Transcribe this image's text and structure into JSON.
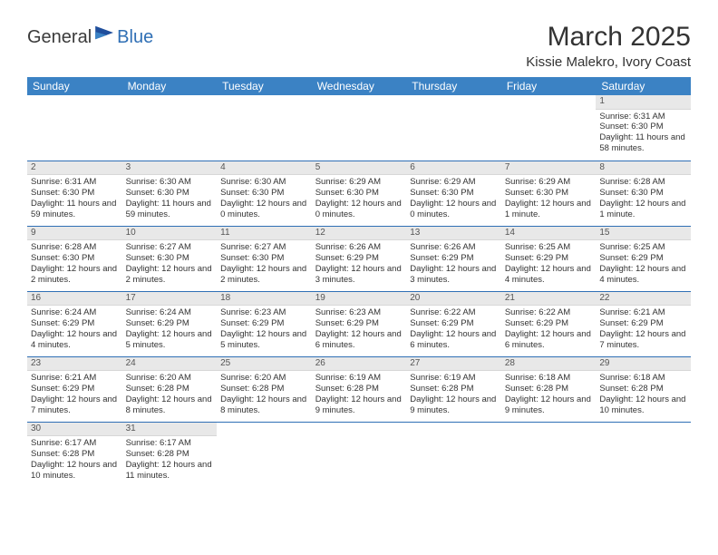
{
  "logo": {
    "text1": "General",
    "text2": "Blue"
  },
  "title": {
    "month": "March 2025",
    "location": "Kissie Malekro, Ivory Coast"
  },
  "dayHeaders": [
    "Sunday",
    "Monday",
    "Tuesday",
    "Wednesday",
    "Thursday",
    "Friday",
    "Saturday"
  ],
  "colors": {
    "header_bg": "#3b82c4",
    "header_fg": "#ffffff",
    "row_sep": "#2f6fb5",
    "daynum_bg": "#e8e8e8",
    "text": "#333333"
  },
  "leadingBlanks": 6,
  "days": [
    {
      "n": 1,
      "sunrise": "6:31 AM",
      "sunset": "6:30 PM",
      "daylight": "11 hours and 58 minutes."
    },
    {
      "n": 2,
      "sunrise": "6:31 AM",
      "sunset": "6:30 PM",
      "daylight": "11 hours and 59 minutes."
    },
    {
      "n": 3,
      "sunrise": "6:30 AM",
      "sunset": "6:30 PM",
      "daylight": "11 hours and 59 minutes."
    },
    {
      "n": 4,
      "sunrise": "6:30 AM",
      "sunset": "6:30 PM",
      "daylight": "12 hours and 0 minutes."
    },
    {
      "n": 5,
      "sunrise": "6:29 AM",
      "sunset": "6:30 PM",
      "daylight": "12 hours and 0 minutes."
    },
    {
      "n": 6,
      "sunrise": "6:29 AM",
      "sunset": "6:30 PM",
      "daylight": "12 hours and 0 minutes."
    },
    {
      "n": 7,
      "sunrise": "6:29 AM",
      "sunset": "6:30 PM",
      "daylight": "12 hours and 1 minute."
    },
    {
      "n": 8,
      "sunrise": "6:28 AM",
      "sunset": "6:30 PM",
      "daylight": "12 hours and 1 minute."
    },
    {
      "n": 9,
      "sunrise": "6:28 AM",
      "sunset": "6:30 PM",
      "daylight": "12 hours and 2 minutes."
    },
    {
      "n": 10,
      "sunrise": "6:27 AM",
      "sunset": "6:30 PM",
      "daylight": "12 hours and 2 minutes."
    },
    {
      "n": 11,
      "sunrise": "6:27 AM",
      "sunset": "6:30 PM",
      "daylight": "12 hours and 2 minutes."
    },
    {
      "n": 12,
      "sunrise": "6:26 AM",
      "sunset": "6:29 PM",
      "daylight": "12 hours and 3 minutes."
    },
    {
      "n": 13,
      "sunrise": "6:26 AM",
      "sunset": "6:29 PM",
      "daylight": "12 hours and 3 minutes."
    },
    {
      "n": 14,
      "sunrise": "6:25 AM",
      "sunset": "6:29 PM",
      "daylight": "12 hours and 4 minutes."
    },
    {
      "n": 15,
      "sunrise": "6:25 AM",
      "sunset": "6:29 PM",
      "daylight": "12 hours and 4 minutes."
    },
    {
      "n": 16,
      "sunrise": "6:24 AM",
      "sunset": "6:29 PM",
      "daylight": "12 hours and 4 minutes."
    },
    {
      "n": 17,
      "sunrise": "6:24 AM",
      "sunset": "6:29 PM",
      "daylight": "12 hours and 5 minutes."
    },
    {
      "n": 18,
      "sunrise": "6:23 AM",
      "sunset": "6:29 PM",
      "daylight": "12 hours and 5 minutes."
    },
    {
      "n": 19,
      "sunrise": "6:23 AM",
      "sunset": "6:29 PM",
      "daylight": "12 hours and 6 minutes."
    },
    {
      "n": 20,
      "sunrise": "6:22 AM",
      "sunset": "6:29 PM",
      "daylight": "12 hours and 6 minutes."
    },
    {
      "n": 21,
      "sunrise": "6:22 AM",
      "sunset": "6:29 PM",
      "daylight": "12 hours and 6 minutes."
    },
    {
      "n": 22,
      "sunrise": "6:21 AM",
      "sunset": "6:29 PM",
      "daylight": "12 hours and 7 minutes."
    },
    {
      "n": 23,
      "sunrise": "6:21 AM",
      "sunset": "6:29 PM",
      "daylight": "12 hours and 7 minutes."
    },
    {
      "n": 24,
      "sunrise": "6:20 AM",
      "sunset": "6:28 PM",
      "daylight": "12 hours and 8 minutes."
    },
    {
      "n": 25,
      "sunrise": "6:20 AM",
      "sunset": "6:28 PM",
      "daylight": "12 hours and 8 minutes."
    },
    {
      "n": 26,
      "sunrise": "6:19 AM",
      "sunset": "6:28 PM",
      "daylight": "12 hours and 9 minutes."
    },
    {
      "n": 27,
      "sunrise": "6:19 AM",
      "sunset": "6:28 PM",
      "daylight": "12 hours and 9 minutes."
    },
    {
      "n": 28,
      "sunrise": "6:18 AM",
      "sunset": "6:28 PM",
      "daylight": "12 hours and 9 minutes."
    },
    {
      "n": 29,
      "sunrise": "6:18 AM",
      "sunset": "6:28 PM",
      "daylight": "12 hours and 10 minutes."
    },
    {
      "n": 30,
      "sunrise": "6:17 AM",
      "sunset": "6:28 PM",
      "daylight": "12 hours and 10 minutes."
    },
    {
      "n": 31,
      "sunrise": "6:17 AM",
      "sunset": "6:28 PM",
      "daylight": "12 hours and 11 minutes."
    }
  ],
  "labels": {
    "sunrise": "Sunrise:",
    "sunset": "Sunset:",
    "daylight": "Daylight:"
  }
}
